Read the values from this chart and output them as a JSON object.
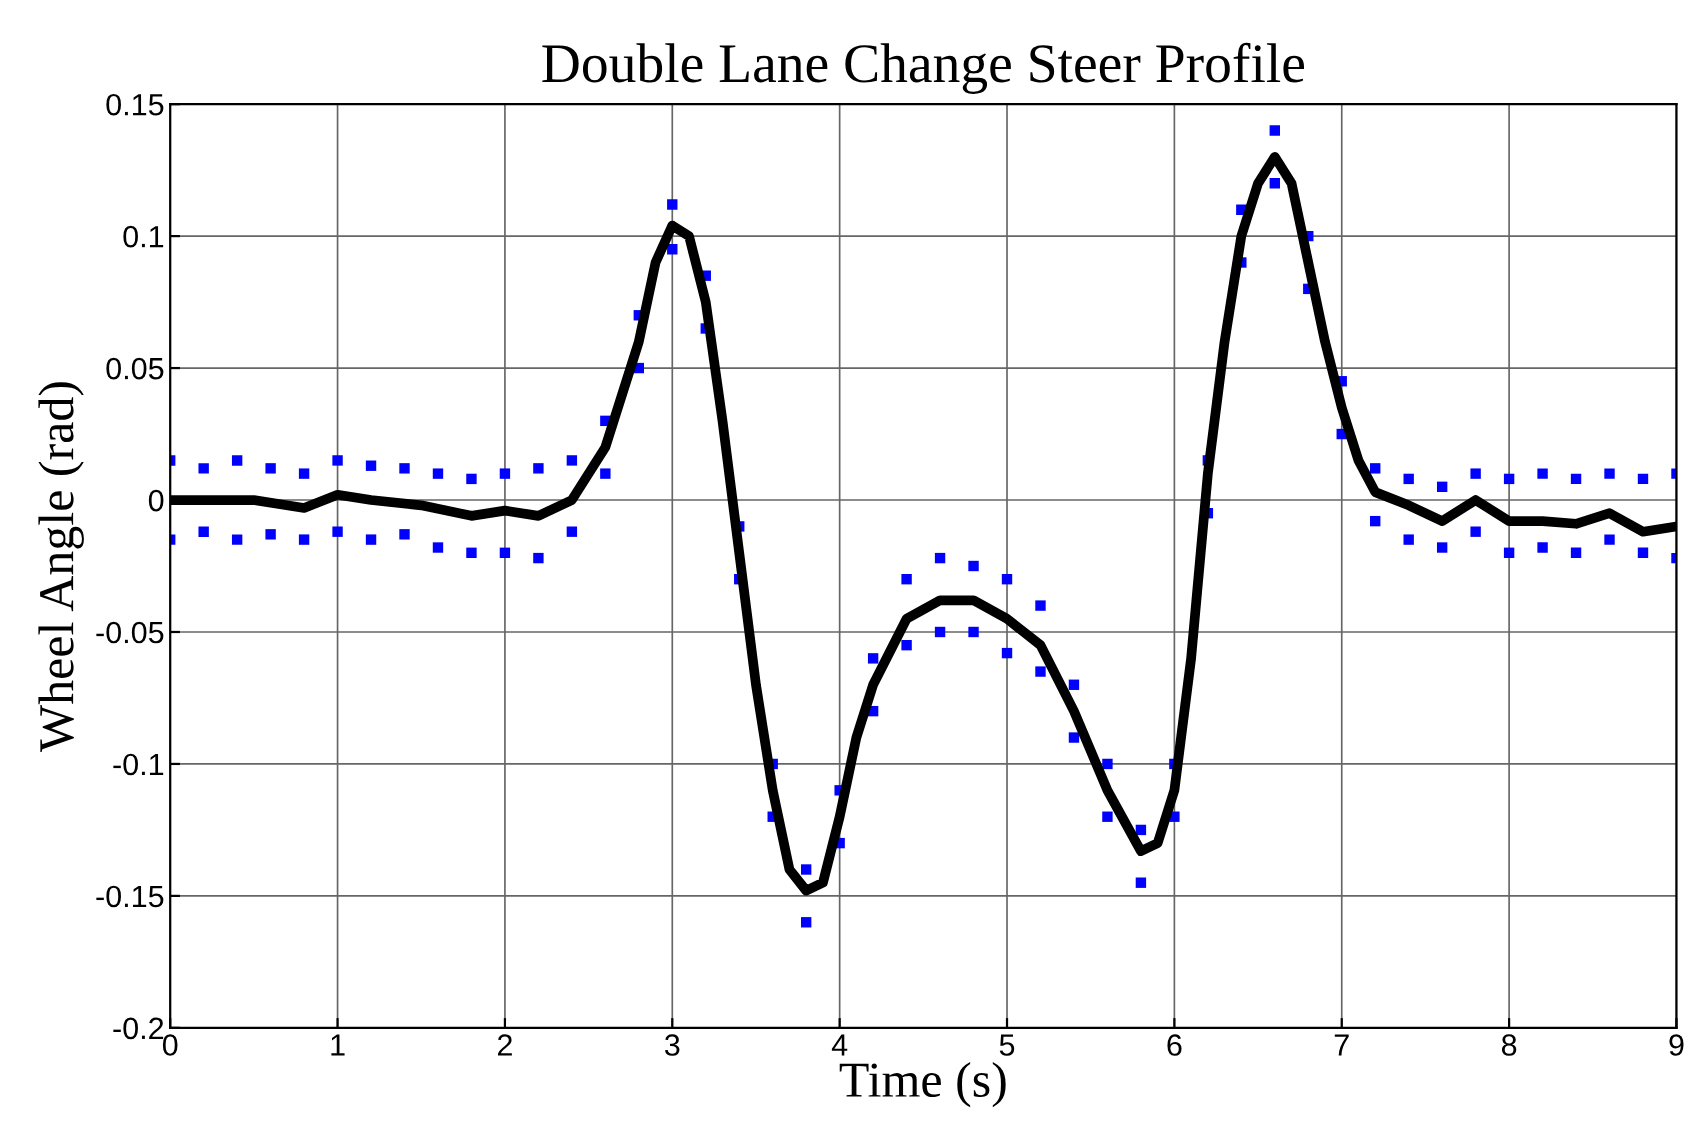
{
  "chart_data": {
    "type": "line",
    "title": "Double Lane Change Steer Profile",
    "xlabel": "Time (s)",
    "ylabel": "Wheel Angle (rad)",
    "xlim": [
      0,
      9
    ],
    "xticks": [
      0,
      1,
      2,
      3,
      4,
      5,
      6,
      7,
      8,
      9
    ],
    "ylim": [
      -0.2,
      0.15
    ],
    "yticks": [
      -0.2,
      -0.15,
      -0.1,
      -0.05,
      0,
      0.05,
      0.1,
      0.15
    ],
    "grid": true,
    "series": [
      {
        "type": "scatter",
        "color": "#0000ff",
        "marker": "square",
        "x": [
          0,
          0,
          0.2,
          0.2,
          0.4,
          0.4,
          0.6,
          0.6,
          0.8,
          0.8,
          1.0,
          1.0,
          1.2,
          1.2,
          1.4,
          1.4,
          1.6,
          1.6,
          1.8,
          1.8,
          2.0,
          2.0,
          2.2,
          2.2,
          2.4,
          2.4,
          2.6,
          2.6,
          2.8,
          2.8,
          3.0,
          3.0,
          3.2,
          3.2,
          3.4,
          3.4,
          3.6,
          3.6,
          3.8,
          3.8,
          4.0,
          4.0,
          4.2,
          4.2,
          4.4,
          4.4,
          4.6,
          4.6,
          4.8,
          4.8,
          5.0,
          5.0,
          5.2,
          5.2,
          5.4,
          5.4,
          5.6,
          5.6,
          5.8,
          5.8,
          6.0,
          6.0,
          6.2,
          6.2,
          6.4,
          6.4,
          6.6,
          6.6,
          6.8,
          6.8,
          7.0,
          7.0,
          7.2,
          7.2,
          7.4,
          7.4,
          7.6,
          7.6,
          7.8,
          7.8,
          8.0,
          8.0,
          8.2,
          8.2,
          8.4,
          8.4,
          8.6,
          8.6,
          8.8,
          8.8,
          9.0,
          9.0
        ],
        "values": [
          0.015,
          -0.015,
          0.012,
          -0.012,
          0.015,
          -0.015,
          0.012,
          -0.013,
          0.01,
          -0.015,
          0.015,
          -0.012,
          0.013,
          -0.015,
          0.012,
          -0.013,
          0.01,
          -0.018,
          0.008,
          -0.02,
          0.01,
          -0.02,
          0.012,
          -0.022,
          0.015,
          -0.012,
          0.03,
          0.01,
          0.07,
          0.05,
          0.112,
          0.095,
          0.085,
          0.065,
          -0.01,
          -0.03,
          -0.1,
          -0.12,
          -0.14,
          -0.16,
          -0.11,
          -0.13,
          -0.06,
          -0.08,
          -0.03,
          -0.055,
          -0.022,
          -0.05,
          -0.025,
          -0.05,
          -0.03,
          -0.058,
          -0.04,
          -0.065,
          -0.07,
          -0.09,
          -0.1,
          -0.12,
          -0.125,
          -0.145,
          -0.1,
          -0.12,
          0.015,
          -0.005,
          0.11,
          0.09,
          0.14,
          0.12,
          0.1,
          0.08,
          0.045,
          0.025,
          0.012,
          -0.008,
          0.008,
          -0.015,
          0.005,
          -0.018,
          0.01,
          -0.012,
          0.008,
          -0.02,
          0.01,
          -0.018,
          0.008,
          -0.02,
          0.01,
          -0.015,
          0.008,
          -0.02,
          0.01,
          -0.022
        ]
      },
      {
        "type": "line",
        "color": "#000000",
        "marker": "none",
        "line_style": "solid",
        "x": [
          0,
          0.5,
          0.8,
          1.0,
          1.2,
          1.5,
          1.8,
          2.0,
          2.2,
          2.4,
          2.6,
          2.8,
          2.9,
          3.0,
          3.1,
          3.2,
          3.3,
          3.4,
          3.5,
          3.6,
          3.7,
          3.8,
          3.9,
          4.0,
          4.1,
          4.2,
          4.4,
          4.6,
          4.8,
          5.0,
          5.2,
          5.4,
          5.6,
          5.8,
          5.9,
          6.0,
          6.1,
          6.2,
          6.3,
          6.4,
          6.5,
          6.6,
          6.7,
          6.8,
          6.9,
          7.0,
          7.1,
          7.2,
          7.4,
          7.6,
          7.8,
          8.0,
          8.2,
          8.4,
          8.6,
          8.8,
          9.0
        ],
        "values": [
          0,
          0,
          -0.003,
          0.002,
          0,
          -0.002,
          -0.006,
          -0.004,
          -0.006,
          0,
          0.02,
          0.06,
          0.09,
          0.104,
          0.1,
          0.075,
          0.03,
          -0.02,
          -0.07,
          -0.11,
          -0.14,
          -0.148,
          -0.145,
          -0.12,
          -0.09,
          -0.07,
          -0.045,
          -0.038,
          -0.038,
          -0.045,
          -0.055,
          -0.08,
          -0.11,
          -0.133,
          -0.13,
          -0.11,
          -0.06,
          0.01,
          0.06,
          0.1,
          0.12,
          0.13,
          0.12,
          0.09,
          0.06,
          0.035,
          0.015,
          0.003,
          -0.002,
          -0.008,
          0,
          -0.008,
          -0.008,
          -0.009,
          -0.005,
          -0.012,
          -0.01
        ]
      }
    ]
  }
}
